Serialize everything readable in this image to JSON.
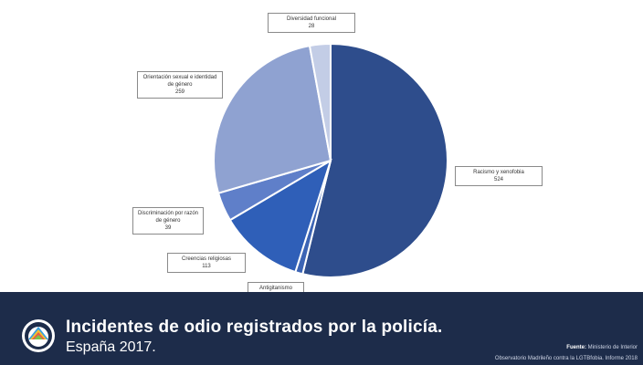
{
  "chart_data": {
    "type": "pie",
    "title": "Incidentes de odio registrados por la policía.",
    "subtitle": "España 2017.",
    "slices": [
      {
        "label": "Racismo y xenofobia",
        "value": 524,
        "value_text": "524",
        "color": "#2e4d8c"
      },
      {
        "label": "Antigitanismo",
        "value": 10,
        "value_text": "10",
        "color": "#3c64b4"
      },
      {
        "label": "Creencias religiosas",
        "value": 113,
        "value_text": "113",
        "color": "#2f5fb8"
      },
      {
        "label": "Discriminación por razón de género",
        "value": 39,
        "value_text": "39",
        "color": "#5f7fc9"
      },
      {
        "label": "Orientación sexual e identidad de género",
        "value": 259,
        "value_text": "259",
        "color": "#8fa2d1"
      },
      {
        "label": "Diversidad funcional",
        "value": 28,
        "value_text": "28",
        "color": "#c3cde6"
      }
    ]
  },
  "footer": {
    "title": "Incidentes de odio registrados por la policía.",
    "subtitle": "España 2017.",
    "source_label": "Fuente:",
    "source_value": "Ministerio de Interior",
    "credit": "Observatorio Madrileño contra la LGTBfobia. Informe 2018"
  },
  "icons": {
    "logo": "observatory-logo-icon"
  }
}
